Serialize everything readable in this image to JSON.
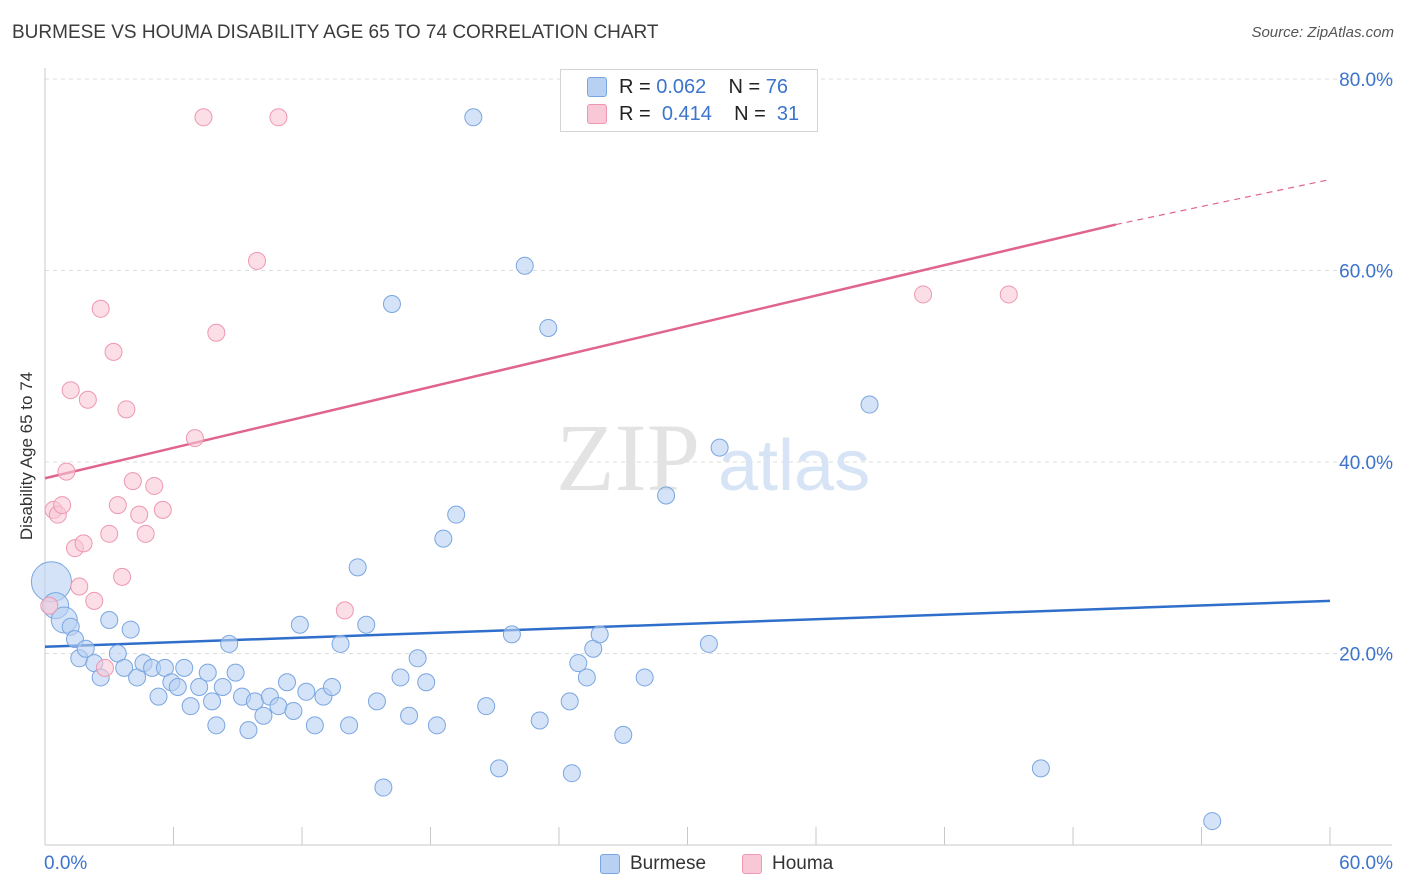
{
  "chart_data": {
    "type": "scatter",
    "title": "BURMESE VS HOUMA DISABILITY AGE 65 TO 74 CORRELATION CHART",
    "source": "Source: ZipAtlas.com",
    "xlabel": "",
    "ylabel": "Disability Age 65 to 74",
    "xlim": [
      0,
      60
    ],
    "ylim": [
      0,
      80
    ],
    "x_tick_labels": [
      "0.0%",
      "60.0%"
    ],
    "y_tick_labels": [
      "20.0%",
      "40.0%",
      "60.0%",
      "80.0%"
    ],
    "y_ticks": [
      20,
      40,
      60,
      80
    ],
    "watermark": "ZIPatlas",
    "legend": [
      {
        "name": "Burmese",
        "r_label": "R =",
        "r_value": "0.062",
        "n_label": "N =",
        "n_value": "76",
        "color": "#7aa6e0"
      },
      {
        "name": "Houma",
        "r_label": "R =",
        "r_value": "0.414",
        "n_label": "N =",
        "n_value": "31",
        "color": "#ef97b2"
      }
    ],
    "series": [
      {
        "name": "Burmese",
        "color": "#7aa6e0",
        "fill": "#b8d1f2",
        "trend": {
          "x0": 0,
          "y0": 20.7,
          "x1": 60,
          "y1": 25.5,
          "color": "#2f6fcb"
        },
        "points": [
          [
            0.3,
            27.5,
            3
          ],
          [
            0.5,
            25.0,
            2
          ],
          [
            0.9,
            23.5,
            2
          ],
          [
            1.2,
            22.8,
            1
          ],
          [
            1.4,
            21.5,
            1
          ],
          [
            1.6,
            19.5,
            1
          ],
          [
            1.9,
            20.5,
            1
          ],
          [
            2.3,
            19.0,
            1
          ],
          [
            2.6,
            17.5,
            1
          ],
          [
            3.0,
            23.5,
            1
          ],
          [
            3.4,
            20.0,
            1
          ],
          [
            3.7,
            18.5,
            1
          ],
          [
            4.0,
            22.5,
            1
          ],
          [
            4.3,
            17.5,
            1
          ],
          [
            4.6,
            19.0,
            1
          ],
          [
            5.0,
            18.5,
            1
          ],
          [
            5.3,
            15.5,
            1
          ],
          [
            5.6,
            18.5,
            1
          ],
          [
            5.9,
            17.0,
            1
          ],
          [
            6.2,
            16.5,
            1
          ],
          [
            6.5,
            18.5,
            1
          ],
          [
            6.8,
            14.5,
            1
          ],
          [
            7.2,
            16.5,
            1
          ],
          [
            7.6,
            18.0,
            1
          ],
          [
            7.8,
            15.0,
            1
          ],
          [
            8.0,
            12.5,
            1
          ],
          [
            8.3,
            16.5,
            1
          ],
          [
            8.6,
            21.0,
            1
          ],
          [
            8.9,
            18.0,
            1
          ],
          [
            9.2,
            15.5,
            1
          ],
          [
            9.5,
            12.0,
            1
          ],
          [
            9.8,
            15.0,
            1
          ],
          [
            10.2,
            13.5,
            1
          ],
          [
            10.5,
            15.5,
            1
          ],
          [
            10.9,
            14.5,
            1
          ],
          [
            11.3,
            17.0,
            1
          ],
          [
            11.6,
            14.0,
            1
          ],
          [
            11.9,
            23.0,
            1
          ],
          [
            12.2,
            16.0,
            1
          ],
          [
            12.6,
            12.5,
            1
          ],
          [
            13.0,
            15.5,
            1
          ],
          [
            13.4,
            16.5,
            1
          ],
          [
            13.8,
            21.0,
            1
          ],
          [
            14.2,
            12.5,
            1
          ],
          [
            14.6,
            29.0,
            1
          ],
          [
            15.0,
            23.0,
            1
          ],
          [
            15.5,
            15.0,
            1
          ],
          [
            15.8,
            6.0,
            1
          ],
          [
            16.2,
            56.5,
            1
          ],
          [
            16.6,
            17.5,
            1
          ],
          [
            17.0,
            13.5,
            1
          ],
          [
            17.4,
            19.5,
            1
          ],
          [
            17.8,
            17.0,
            1
          ],
          [
            18.3,
            12.5,
            1
          ],
          [
            18.6,
            32.0,
            1
          ],
          [
            19.2,
            34.5,
            1
          ],
          [
            20.0,
            76.0,
            1
          ],
          [
            20.6,
            14.5,
            1
          ],
          [
            21.2,
            8.0,
            1
          ],
          [
            21.8,
            22.0,
            1
          ],
          [
            22.4,
            60.5,
            1
          ],
          [
            23.1,
            13.0,
            1
          ],
          [
            23.5,
            54.0,
            1
          ],
          [
            24.5,
            15.0,
            1
          ],
          [
            24.6,
            7.5,
            1
          ],
          [
            24.9,
            19.0,
            1
          ],
          [
            25.3,
            17.5,
            1
          ],
          [
            25.6,
            20.5,
            1
          ],
          [
            25.9,
            22.0,
            1
          ],
          [
            27.0,
            11.5,
            1
          ],
          [
            28.0,
            17.5,
            1
          ],
          [
            29.0,
            36.5,
            1
          ],
          [
            31.5,
            41.5,
            1
          ],
          [
            31.0,
            21.0,
            1
          ],
          [
            38.5,
            46.0,
            1
          ],
          [
            46.5,
            8.0,
            1
          ],
          [
            54.5,
            2.5,
            1
          ]
        ]
      },
      {
        "name": "Houma",
        "color": "#ef97b2",
        "fill": "#f9c8d6",
        "trend": {
          "x0": 0,
          "y0": 38.3,
          "x1": 50,
          "y1": 64.8,
          "dash_x1": 60,
          "dash_y1": 69.5,
          "color": "#e0648e"
        },
        "points": [
          [
            0.2,
            25.0,
            1
          ],
          [
            0.4,
            35.0,
            1
          ],
          [
            0.6,
            34.5,
            1
          ],
          [
            0.8,
            35.5,
            1
          ],
          [
            1.0,
            39.0,
            1
          ],
          [
            1.2,
            47.5,
            1
          ],
          [
            1.4,
            31.0,
            1
          ],
          [
            1.6,
            27.0,
            1
          ],
          [
            1.8,
            31.5,
            1
          ],
          [
            2.0,
            46.5,
            1
          ],
          [
            2.3,
            25.5,
            1
          ],
          [
            2.6,
            56.0,
            1
          ],
          [
            2.8,
            18.5,
            1
          ],
          [
            3.0,
            32.5,
            1
          ],
          [
            3.2,
            51.5,
            1
          ],
          [
            3.4,
            35.5,
            1
          ],
          [
            3.6,
            28.0,
            1
          ],
          [
            3.8,
            45.5,
            1
          ],
          [
            4.1,
            38.0,
            1
          ],
          [
            4.4,
            34.5,
            1
          ],
          [
            4.7,
            32.5,
            1
          ],
          [
            5.1,
            37.5,
            1
          ],
          [
            5.5,
            35.0,
            1
          ],
          [
            7.0,
            42.5,
            1
          ],
          [
            7.4,
            76.0,
            1
          ],
          [
            8.0,
            53.5,
            1
          ],
          [
            9.9,
            61.0,
            1
          ],
          [
            10.9,
            76.0,
            1
          ],
          [
            14.0,
            24.5,
            1
          ],
          [
            41.0,
            57.5,
            1
          ],
          [
            45.0,
            57.5,
            1
          ]
        ]
      }
    ]
  }
}
